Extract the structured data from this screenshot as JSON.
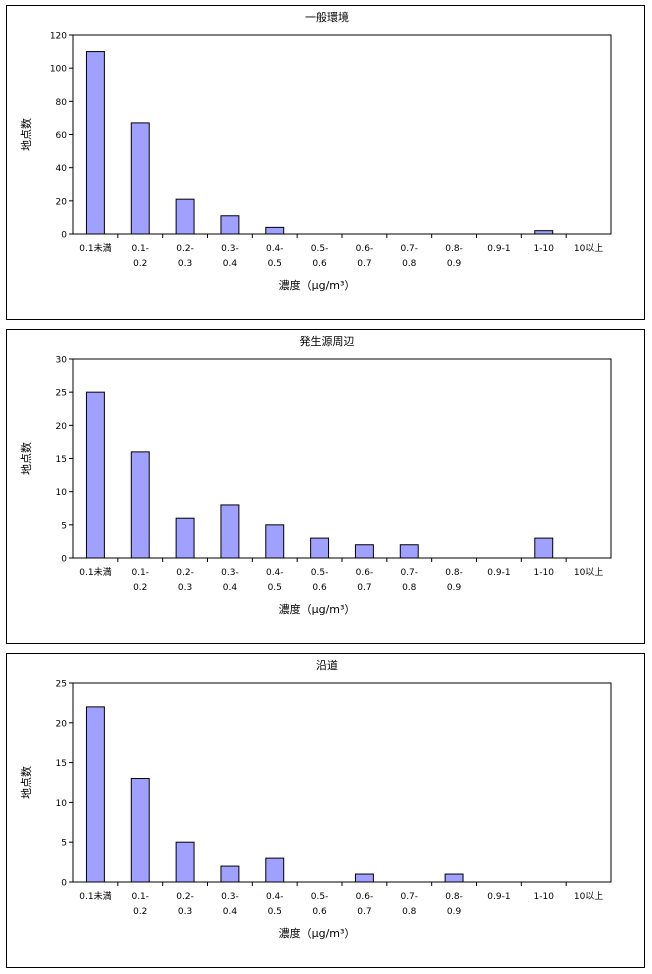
{
  "chart_data": [
    {
      "type": "bar",
      "title": "一般環境",
      "xlabel": "濃度（μg/m³）",
      "ylabel": "地点数",
      "ylim": [
        0,
        120
      ],
      "yticks": [
        0,
        20,
        40,
        60,
        80,
        100,
        120
      ],
      "categories": [
        "0.1未満",
        "0.1-0.2",
        "0.2-0.3",
        "0.3-0.4",
        "0.4-0.5",
        "0.5-0.6",
        "0.6-0.7",
        "0.7-0.8",
        "0.8-0.9",
        "0.9-1",
        "1-10",
        "10以上"
      ],
      "values": [
        110,
        67,
        21,
        11,
        4,
        0,
        0,
        0,
        0,
        0,
        2,
        0
      ],
      "bar_color": "#a0a0ff",
      "grid": false
    },
    {
      "type": "bar",
      "title": "発生源周辺",
      "xlabel": "濃度（μg/m³）",
      "ylabel": "地点数",
      "ylim": [
        0,
        30
      ],
      "yticks": [
        0,
        5,
        10,
        15,
        20,
        25,
        30
      ],
      "categories": [
        "0.1未満",
        "0.1-0.2",
        "0.2-0.3",
        "0.3-0.4",
        "0.4-0.5",
        "0.5-0.6",
        "0.6-0.7",
        "0.7-0.8",
        "0.8-0.9",
        "0.9-1",
        "1-10",
        "10以上"
      ],
      "values": [
        25,
        16,
        6,
        8,
        5,
        3,
        2,
        2,
        0,
        0,
        3,
        0
      ],
      "bar_color": "#a0a0ff",
      "grid": false
    },
    {
      "type": "bar",
      "title": "沿道",
      "xlabel": "濃度（μg/m³）",
      "ylabel": "地点数",
      "ylim": [
        0,
        25
      ],
      "yticks": [
        0,
        5,
        10,
        15,
        20,
        25
      ],
      "categories": [
        "0.1未満",
        "0.1-0.2",
        "0.2-0.3",
        "0.3-0.4",
        "0.4-0.5",
        "0.5-0.6",
        "0.6-0.7",
        "0.7-0.8",
        "0.8-0.9",
        "0.9-1",
        "1-10",
        "10以上"
      ],
      "values": [
        22,
        13,
        5,
        2,
        3,
        0,
        1,
        0,
        1,
        0,
        0,
        0
      ],
      "bar_color": "#a0a0ff",
      "grid": false
    }
  ]
}
